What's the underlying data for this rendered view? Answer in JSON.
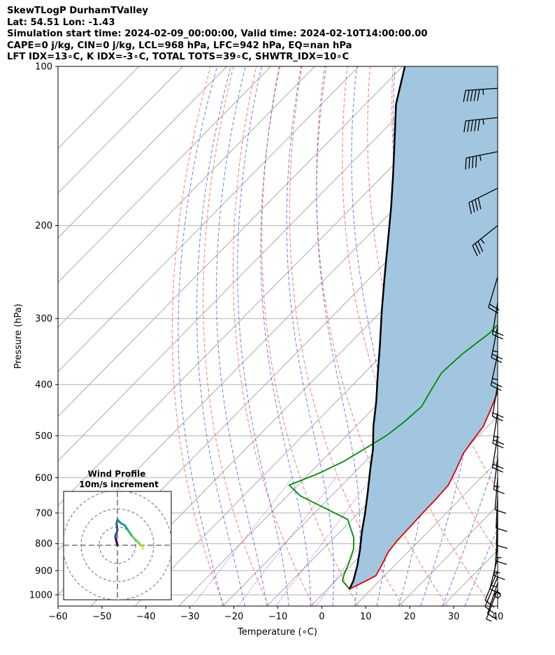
{
  "header": {
    "line1": "SkewTLogP DurhamTValley",
    "line2": "Lat: 54.51   Lon: -1.43",
    "line3": "Simulation start time: 2024-02-09_00:00:00, Valid time: 2024-02-10T14:00:00.00",
    "line4": "CAPE=0 j/kg, CIN=0 j/kg, LCL=968 hPa, LFC=942 hPa, EQ=nan hPa",
    "line5": "LFT IDX=13∘C, K IDX=-3∘C, TOTAL TOTS=39∘C, SHWTR_IDX=10∘C"
  },
  "chart_data": [
    {
      "type": "line",
      "subtype": "skew-t log-p",
      "xlabel": "Temperature (∘C)",
      "ylabel": "Pressure (hPa)",
      "xlim": [
        -60,
        40
      ],
      "ylim": [
        1050,
        100
      ],
      "y_scale": "log",
      "x_ticks": [
        -60,
        -50,
        -40,
        -30,
        -20,
        -10,
        0,
        10,
        20,
        30,
        40
      ],
      "x_tick_labels": [
        "−60",
        "−50",
        "−40",
        "−30",
        "−20",
        "−10",
        "0",
        "10",
        "20",
        "30",
        "40"
      ],
      "y_ticks": [
        1000,
        900,
        800,
        700,
        600,
        500,
        400,
        300,
        200,
        100
      ],
      "y_tick_labels": [
        "1000",
        "900",
        "800",
        "700",
        "600",
        "500",
        "400",
        "300",
        "200",
        "100"
      ],
      "grid": true,
      "skew_reference_pressure": 1000,
      "background_lines": {
        "isotherms_color": "#aaaaaa",
        "dry_adiabats_color": "#ff6666",
        "moist_adiabats_color": "#5566ee",
        "mixing_ratio_color": "#9944cc",
        "dry_adiabat_theta_K": [
          250,
          260,
          270,
          280,
          290,
          300,
          310,
          320,
          330,
          340,
          350,
          360,
          370,
          380,
          390,
          400,
          410,
          420
        ],
        "moist_adiabat_start_C": [
          -20,
          -15,
          -10,
          -5,
          0,
          5,
          10,
          15,
          20,
          25,
          30,
          35
        ]
      },
      "series": [
        {
          "name": "temperature",
          "color": "#dd0000",
          "points": [
            [
              5.0,
              975
            ],
            [
              7.5,
              930
            ],
            [
              8.0,
              920
            ],
            [
              7.0,
              880
            ],
            [
              5.5,
              830
            ],
            [
              5.0,
              790
            ],
            [
              4.8,
              740
            ],
            [
              4.6,
              700
            ],
            [
              4.5,
              660
            ],
            [
              4.2,
              620
            ],
            [
              2.5,
              580
            ],
            [
              0.5,
              540
            ],
            [
              -0.3,
              510
            ],
            [
              -1.0,
              480
            ],
            [
              -3.5,
              440
            ],
            [
              -6.5,
              400
            ],
            [
              -9.5,
              370
            ],
            [
              -12.5,
              340
            ],
            [
              -15.0,
              310
            ],
            [
              -17.5,
              285
            ],
            [
              -18.0,
              260
            ],
            [
              -17.8,
              250
            ],
            [
              -13.0,
              220
            ],
            [
              -10.5,
              205
            ],
            [
              -7.5,
              195
            ],
            [
              -4.0,
              180
            ],
            [
              -2.0,
              166
            ],
            [
              -0.5,
              150
            ],
            [
              1.0,
              136
            ],
            [
              2.5,
              125
            ],
            [
              6.5,
              112
            ],
            [
              9.0,
              104
            ],
            [
              10.0,
              100
            ]
          ]
        },
        {
          "name": "dewpoint",
          "color": "#008800",
          "points": [
            [
              5.0,
              975
            ],
            [
              1.5,
              940
            ],
            [
              0.5,
              915
            ],
            [
              -1.0,
              870
            ],
            [
              -3.0,
              820
            ],
            [
              -5.5,
              780
            ],
            [
              -11.0,
              720
            ],
            [
              -27.0,
              650
            ],
            [
              -32.0,
              620
            ],
            [
              -28.0,
              590
            ],
            [
              -25.0,
              560
            ],
            [
              -23.0,
              530
            ],
            [
              -21.0,
              500
            ],
            [
              -20.0,
              470
            ],
            [
              -19.5,
              440
            ],
            [
              -21.0,
              410
            ],
            [
              -22.5,
              380
            ],
            [
              -22.0,
              350
            ],
            [
              -20.5,
              320
            ],
            [
              -20.5,
              295
            ],
            [
              -21.0,
              280
            ],
            [
              -21.0,
              260
            ],
            [
              -20.5,
              250
            ],
            [
              -19.5,
              240
            ],
            [
              -19.8,
              225
            ],
            [
              -21.0,
              210
            ],
            [
              -22.5,
              195
            ],
            [
              -24.0,
              180
            ],
            [
              -24.5,
              170
            ],
            [
              -22.0,
              160
            ],
            [
              -19.0,
              145
            ],
            [
              -15.0,
              130
            ],
            [
              -10.0,
              115
            ],
            [
              -6.0,
              100
            ]
          ]
        },
        {
          "name": "parcel",
          "color": "#000000",
          "points": [
            [
              5.0,
              975
            ],
            [
              4.0,
              940
            ],
            [
              1.5,
              880
            ],
            [
              -1.5,
              820
            ],
            [
              -5.0,
              760
            ],
            [
              -8.5,
              700
            ],
            [
              -12.5,
              640
            ],
            [
              -17.0,
              580
            ],
            [
              -21.0,
              530
            ],
            [
              -26.0,
              480
            ],
            [
              -31.0,
              430
            ],
            [
              -37.0,
              380
            ],
            [
              -43.0,
              335
            ],
            [
              -50.0,
              290
            ],
            [
              -57.0,
              250
            ],
            [
              -64.0,
              215
            ],
            [
              -71.0,
              185
            ],
            [
              -78.0,
              160
            ],
            [
              -86.0,
              136
            ],
            [
              -93.0,
              118
            ],
            [
              -99.5,
              100
            ]
          ]
        }
      ],
      "shading": {
        "between": [
          "temperature",
          "parcel"
        ],
        "color": "#a3c6e0"
      },
      "wind_barbs": {
        "color": "#000000",
        "units_note": "",
        "levels": [
          {
            "p": 1000,
            "u": 0,
            "v": 0
          },
          {
            "p": 975,
            "u": 1.5,
            "v": 4
          },
          {
            "p": 950,
            "u": 2,
            "v": 6
          },
          {
            "p": 925,
            "u": 3,
            "v": 7
          },
          {
            "p": 900,
            "u": 3,
            "v": 7
          },
          {
            "p": 850,
            "u": 2,
            "v": 8
          },
          {
            "p": 800,
            "u": 1,
            "v": 9
          },
          {
            "p": 750,
            "u": 0.5,
            "v": 8
          },
          {
            "p": 700,
            "u": 0.3,
            "v": 7
          },
          {
            "p": 650,
            "u": 0.3,
            "v": 6
          },
          {
            "p": 600,
            "u": 0.5,
            "v": 6
          },
          {
            "p": 550,
            "u": 1,
            "v": 8
          },
          {
            "p": 500,
            "u": 2,
            "v": 12
          },
          {
            "p": 450,
            "u": 2,
            "v": 13
          },
          {
            "p": 400,
            "u": 2,
            "v": 12
          },
          {
            "p": 350,
            "u": 3,
            "v": 14
          },
          {
            "p": 310,
            "u": 3,
            "v": 15
          },
          {
            "p": 280,
            "u": 2,
            "v": 12
          },
          {
            "p": 250,
            "u": 3,
            "v": 10
          },
          {
            "p": 200,
            "u": 15,
            "v": 12
          },
          {
            "p": 170,
            "u": 20,
            "v": 10
          },
          {
            "p": 145,
            "u": 25,
            "v": 5
          },
          {
            "p": 125,
            "u": 30,
            "v": 3
          },
          {
            "p": 110,
            "u": 30,
            "v": 2
          }
        ]
      }
    },
    {
      "type": "line",
      "subtype": "hodograph",
      "title": "Wind Profile",
      "subtitle": "10m/s increment",
      "ring_step": 10,
      "rings": [
        10,
        20,
        30
      ],
      "grid": true,
      "points": [
        [
          0,
          0
        ],
        [
          -0.5,
          2
        ],
        [
          -1,
          4
        ],
        [
          -1.2,
          5
        ],
        [
          0,
          8
        ],
        [
          -0.5,
          12
        ],
        [
          0,
          14
        ],
        [
          2,
          12
        ],
        [
          4,
          11
        ],
        [
          6,
          8
        ],
        [
          8,
          5
        ],
        [
          11,
          2
        ],
        [
          13,
          0
        ],
        [
          14,
          -1
        ],
        [
          14,
          -2
        ]
      ],
      "colormap": "viridis"
    }
  ]
}
